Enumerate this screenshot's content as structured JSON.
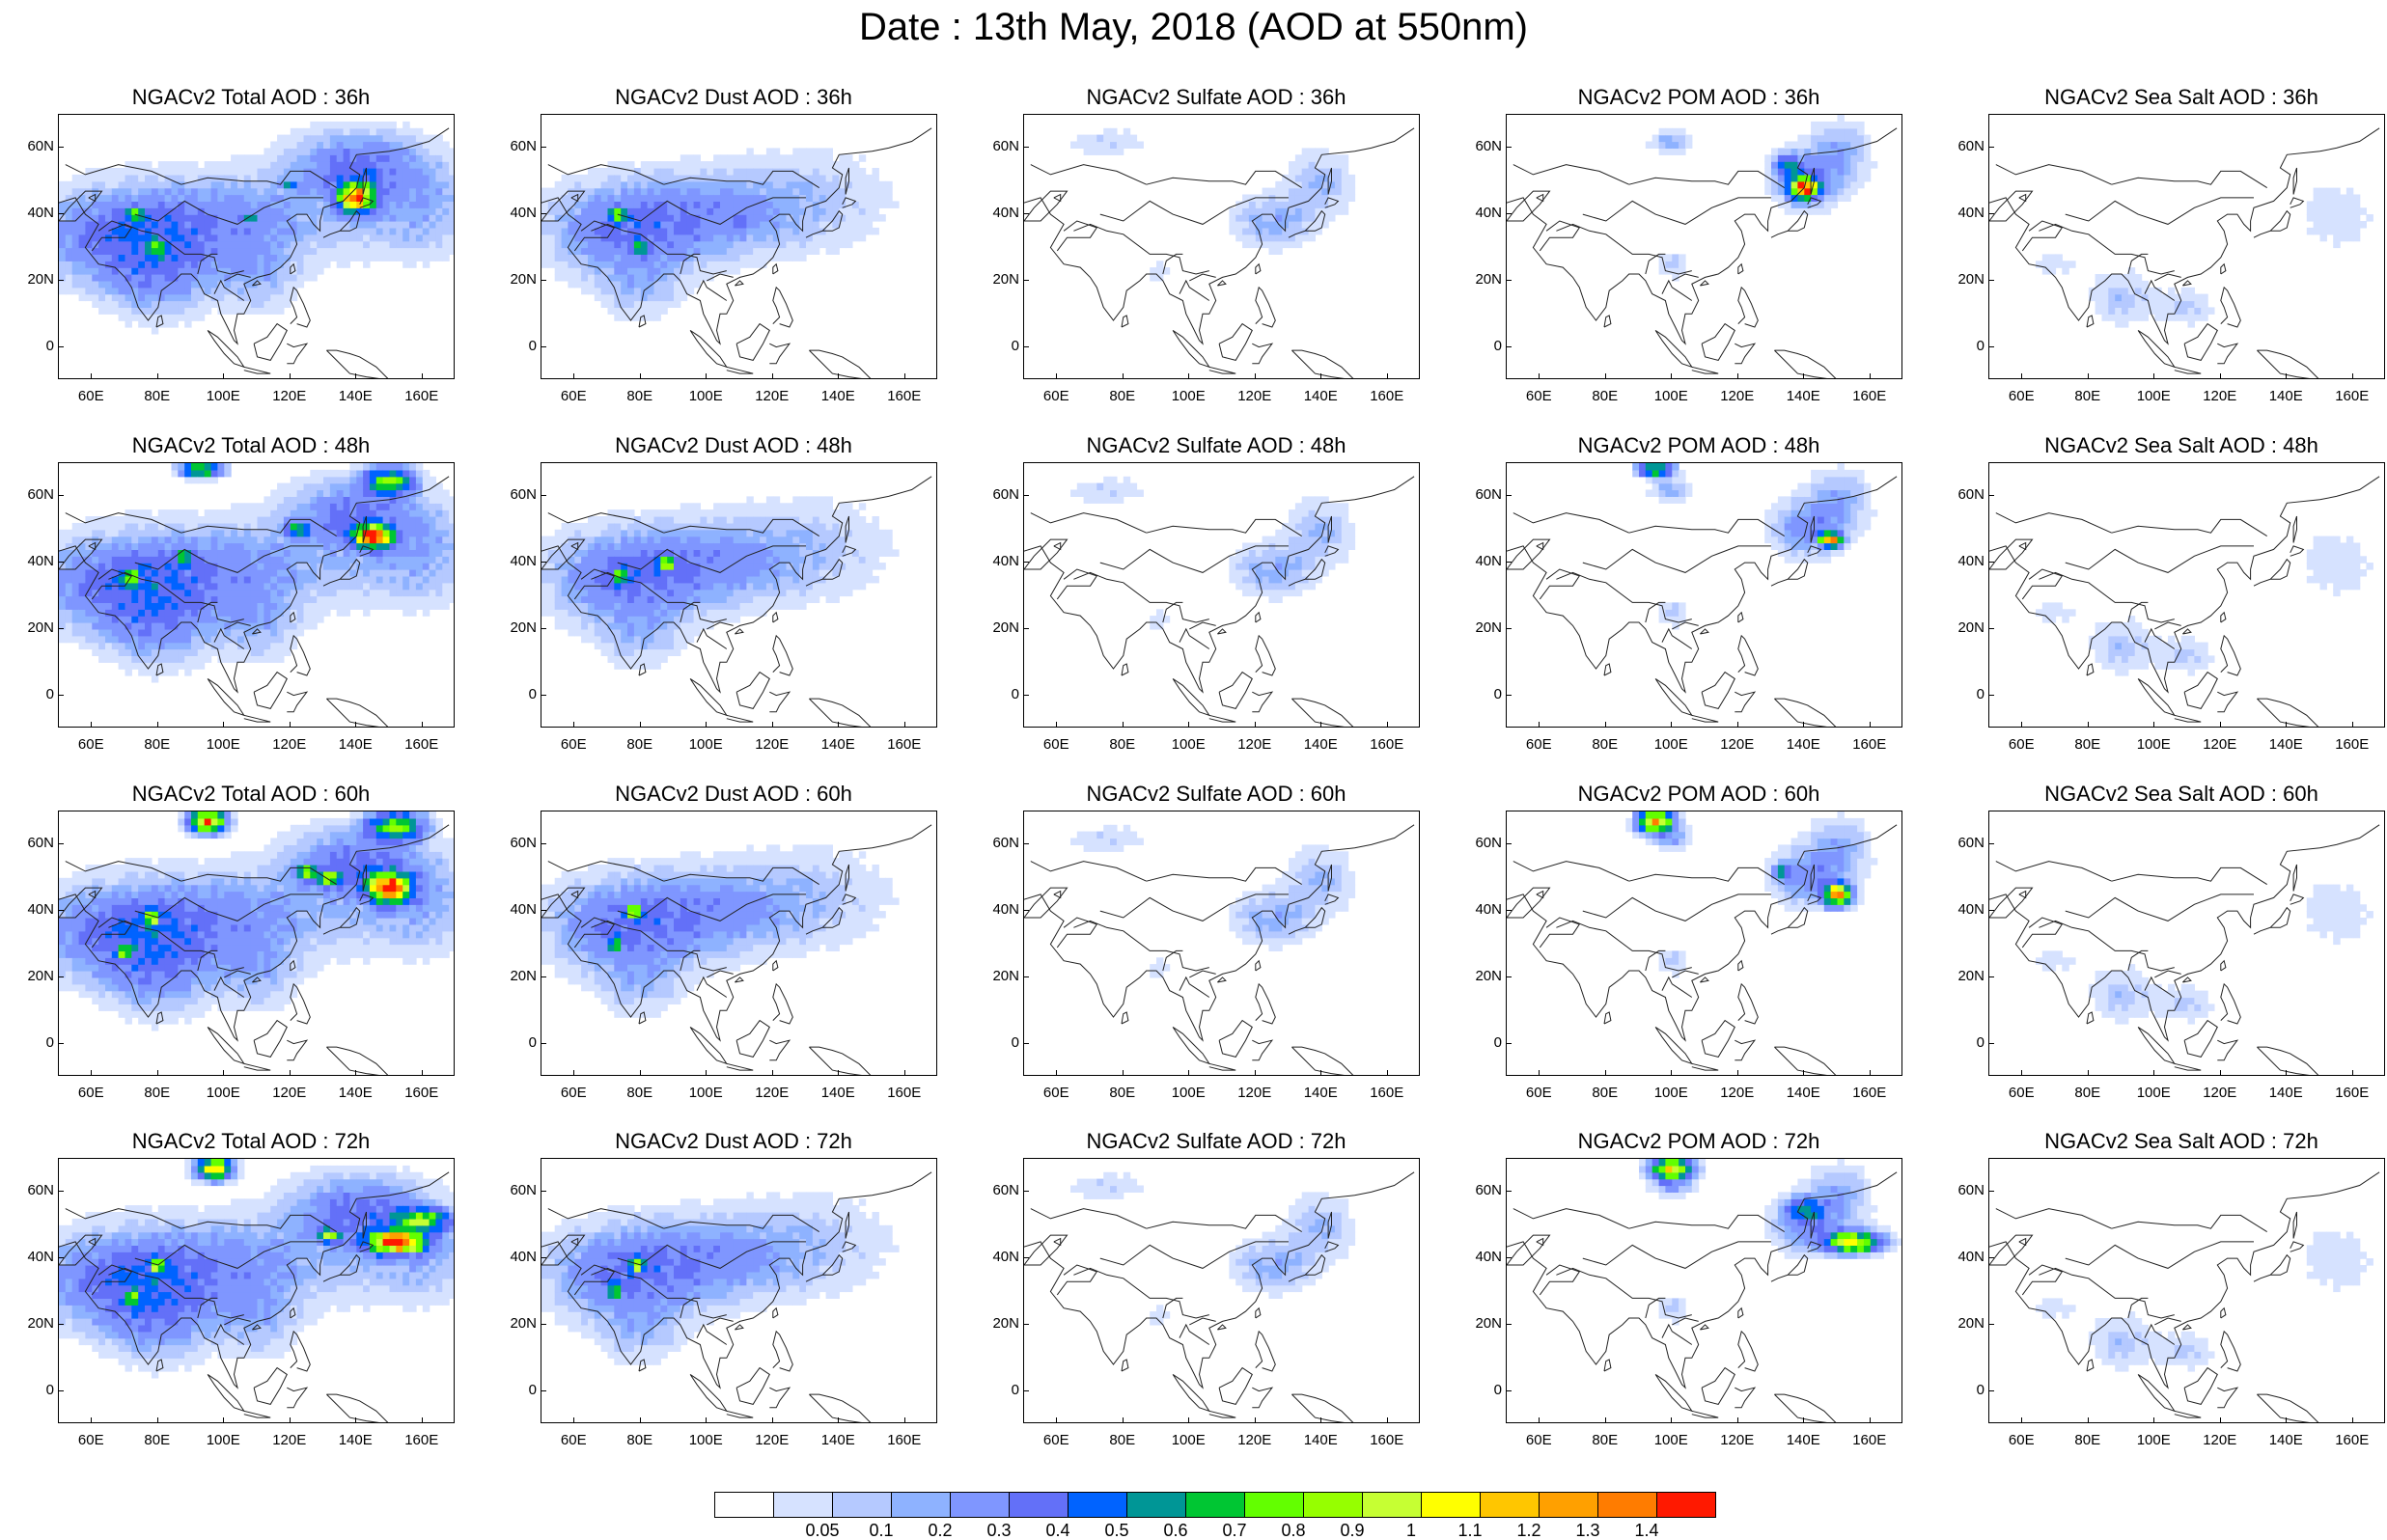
{
  "title": "Date : 13th May, 2018 (AOD at 550nm)",
  "panels": [
    {
      "title": "NGACv2 Total AOD : 36h",
      "species": "total",
      "hour": 36
    },
    {
      "title": "NGACv2 Dust AOD : 36h",
      "species": "dust",
      "hour": 36
    },
    {
      "title": "NGACv2 Sulfate AOD : 36h",
      "species": "sulfate",
      "hour": 36
    },
    {
      "title": "NGACv2 POM AOD : 36h",
      "species": "pom",
      "hour": 36
    },
    {
      "title": "NGACv2 Sea Salt AOD : 36h",
      "species": "seasalt",
      "hour": 36
    },
    {
      "title": "NGACv2 Total AOD : 48h",
      "species": "total",
      "hour": 48
    },
    {
      "title": "NGACv2 Dust AOD : 48h",
      "species": "dust",
      "hour": 48
    },
    {
      "title": "NGACv2 Sulfate AOD : 48h",
      "species": "sulfate",
      "hour": 48
    },
    {
      "title": "NGACv2 POM AOD : 48h",
      "species": "pom",
      "hour": 48
    },
    {
      "title": "NGACv2 Sea Salt AOD : 48h",
      "species": "seasalt",
      "hour": 48
    },
    {
      "title": "NGACv2 Total AOD : 60h",
      "species": "total",
      "hour": 60
    },
    {
      "title": "NGACv2 Dust AOD : 60h",
      "species": "dust",
      "hour": 60
    },
    {
      "title": "NGACv2 Sulfate AOD : 60h",
      "species": "sulfate",
      "hour": 60
    },
    {
      "title": "NGACv2 POM AOD : 60h",
      "species": "pom",
      "hour": 60
    },
    {
      "title": "NGACv2 Sea Salt AOD : 60h",
      "species": "seasalt",
      "hour": 60
    },
    {
      "title": "NGACv2 Total AOD : 72h",
      "species": "total",
      "hour": 72
    },
    {
      "title": "NGACv2 Dust AOD : 72h",
      "species": "dust",
      "hour": 72
    },
    {
      "title": "NGACv2 Sulfate AOD : 72h",
      "species": "sulfate",
      "hour": 72
    },
    {
      "title": "NGACv2 POM AOD : 72h",
      "species": "pom",
      "hour": 72
    },
    {
      "title": "NGACv2 Sea Salt  AOD : 72h",
      "species": "seasalt",
      "hour": 72
    }
  ],
  "map_axes": {
    "lon_range": [
      50,
      170
    ],
    "lat_range": [
      -10,
      70
    ],
    "x_ticks": [
      60,
      80,
      100,
      120,
      140,
      160
    ],
    "x_tick_labels": [
      "60E",
      "80E",
      "100E",
      "120E",
      "140E",
      "160E"
    ],
    "y_ticks": [
      0,
      20,
      40,
      60
    ],
    "y_tick_labels": [
      "0",
      "20N",
      "40N",
      "60N"
    ]
  },
  "colorbar": {
    "labels": [
      "0.05",
      "0.1",
      "0.2",
      "0.3",
      "0.4",
      "0.5",
      "0.6",
      "0.7",
      "0.8",
      "0.9",
      "1",
      "1.1",
      "1.2",
      "1.3",
      "1.4"
    ],
    "colors": [
      "#ffffff",
      "#d6e2ff",
      "#b5c9ff",
      "#8eb2ff",
      "#7f96ff",
      "#6370f8",
      "#0063ff",
      "#009696",
      "#00c633",
      "#63ff00",
      "#96ff00",
      "#c6ff33",
      "#ffff00",
      "#ffc600",
      "#ffa000",
      "#ff7c00",
      "#ff1900"
    ]
  }
}
